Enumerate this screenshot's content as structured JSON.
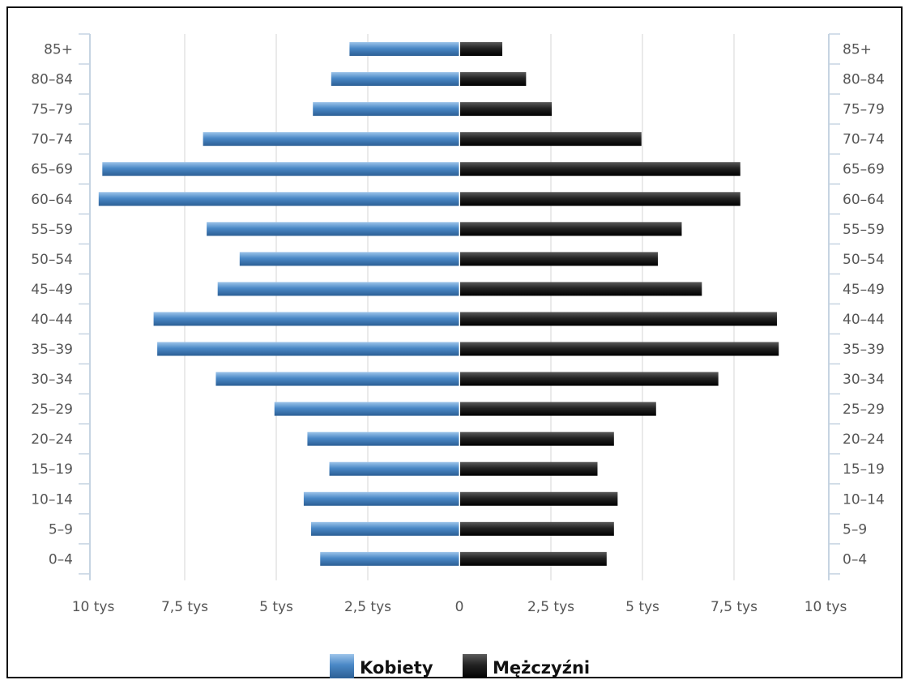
{
  "chart_data": {
    "type": "bar",
    "orientation": "horizontal",
    "layout": "population-pyramid",
    "categories": [
      "85+",
      "80-84",
      "75-79",
      "70-74",
      "65-69",
      "60-64",
      "55-59",
      "50-54",
      "45-49",
      "40-44",
      "35-39",
      "30-34",
      "25-29",
      "20-24",
      "15-19",
      "10-14",
      "5-9",
      "0-4"
    ],
    "series": [
      {
        "name": "Kobiety",
        "side": "left",
        "color": "#3d7ab8",
        "values": [
          3000,
          3500,
          4000,
          7000,
          9750,
          9850,
          6900,
          6000,
          6600,
          8350,
          8250,
          6650,
          5050,
          4150,
          3550,
          4250,
          4050,
          3800
        ]
      },
      {
        "name": "Mężczyźni",
        "side": "right",
        "color": "#1a1a1a",
        "values": [
          1150,
          1800,
          2500,
          4950,
          7650,
          7650,
          6050,
          5400,
          6600,
          8650,
          8700,
          7050,
          5350,
          4200,
          3750,
          4300,
          4200,
          4000
        ]
      }
    ],
    "x_ticks": [
      "10 tys",
      "7,5 tys",
      "5 tys",
      "2,5 tys",
      "0",
      "2,5 tys",
      "5 tys",
      "7,5 tys",
      "10 tys"
    ],
    "xlim": [
      -10000,
      10000
    ],
    "grid": true,
    "legend": "bottom-center"
  }
}
